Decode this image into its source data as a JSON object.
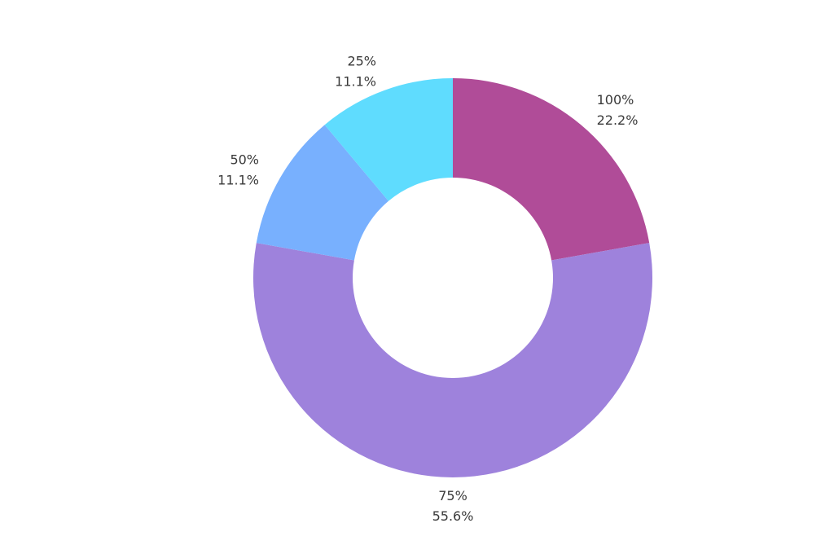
{
  "chart_data": {
    "type": "pie",
    "variant": "donut",
    "title": "",
    "start": "top, clockwise",
    "slices": [
      {
        "category": "100%",
        "percent_label": "22.2%",
        "value": 22.2,
        "color": "#b04c98"
      },
      {
        "category": "75%",
        "percent_label": "55.6%",
        "value": 55.6,
        "color": "#9e82dc"
      },
      {
        "category": "50%",
        "percent_label": "11.1%",
        "value": 11.1,
        "color": "#78b0fe"
      },
      {
        "category": "25%",
        "percent_label": "11.1%",
        "value": 11.1,
        "color": "#5fdcfe"
      }
    ],
    "legend": "none"
  }
}
